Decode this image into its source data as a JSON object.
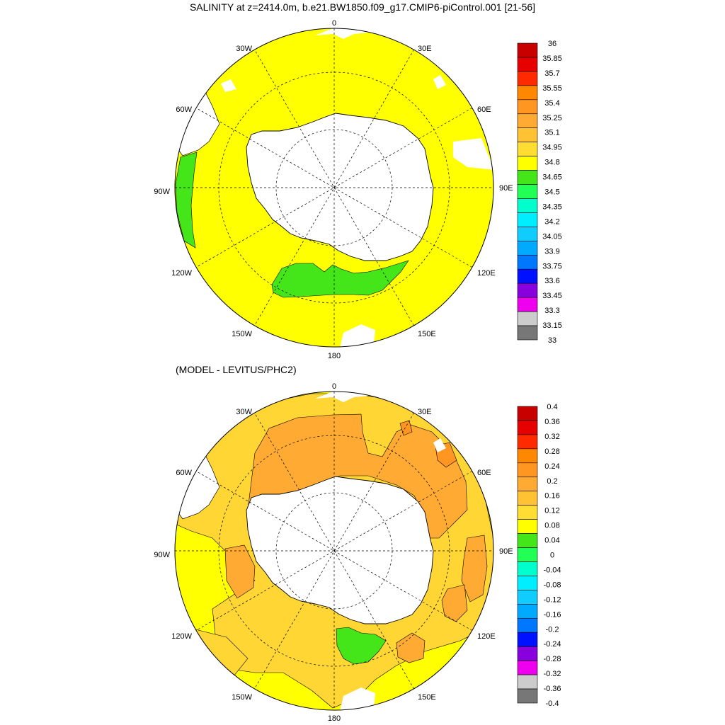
{
  "title": "SALINITY at z=2414.0m, b.e21.BW1850.f09_g17.CMIP6-piControl.001 [21-56]",
  "subtitle": "(MODEL - LEVITUS/PHC2)",
  "longitude_labels": [
    "0",
    "30E",
    "60E",
    "90E",
    "120E",
    "150E",
    "180",
    "150W",
    "120W",
    "90W",
    "60W",
    "30W"
  ],
  "colors": {
    "land": "#ffffff",
    "coast": "#000000",
    "top_background": "#ffff00",
    "top_green": "#44e61a",
    "bottom_background": "#ffff00",
    "bottom_light_orange": "#ffd633",
    "bottom_orange": "#ffaa33",
    "bottom_dark_orange": "#ff9622",
    "bottom_green": "#44e61a"
  },
  "colorbars": [
    {
      "labels": [
        "36",
        "35.85",
        "35.7",
        "35.55",
        "35.4",
        "35.25",
        "35.1",
        "34.95",
        "34.8",
        "34.65",
        "34.5",
        "34.35",
        "34.2",
        "34.05",
        "33.9",
        "33.75",
        "33.6",
        "33.45",
        "33.3",
        "33.15",
        "33"
      ],
      "colors": [
        "#c80000",
        "#e60000",
        "#ff2a00",
        "#ff8800",
        "#ff9622",
        "#ffaa33",
        "#ffc233",
        "#ffdd33",
        "#ffff00",
        "#44e61a",
        "#22ff55",
        "#00ffcc",
        "#00eeff",
        "#11ccff",
        "#00aaff",
        "#0077ff",
        "#0011ff",
        "#8800dd",
        "#ee00ee",
        "#cccccc",
        "#777777"
      ]
    },
    {
      "labels": [
        "0.4",
        "0.36",
        "0.32",
        "0.28",
        "0.24",
        "0.2",
        "0.16",
        "0.12",
        "0.08",
        "0.04",
        "0",
        "-0.04",
        "-0.08",
        "-0.12",
        "-0.16",
        "-0.2",
        "-0.24",
        "-0.28",
        "-0.32",
        "-0.36",
        "-0.4"
      ],
      "colors": [
        "#c80000",
        "#e60000",
        "#ff2a00",
        "#ff8800",
        "#ff9622",
        "#ffaa33",
        "#ffc233",
        "#ffdd33",
        "#ffff00",
        "#44e61a",
        "#22ff55",
        "#00ffcc",
        "#00eeff",
        "#11ccff",
        "#00aaff",
        "#0077ff",
        "#0011ff",
        "#8800dd",
        "#ee00ee",
        "#cccccc",
        "#777777"
      ]
    }
  ]
}
